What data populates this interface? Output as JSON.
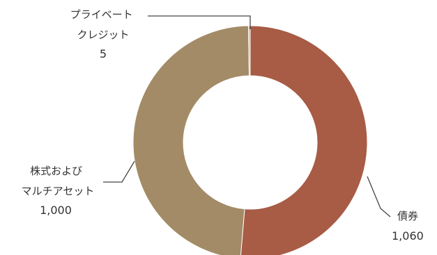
{
  "chart_data": {
    "type": "pie",
    "donut": true,
    "categories": [
      "債券",
      "株式および\nマルチアセット",
      "プライベート\nクレジット"
    ],
    "values": [
      1060,
      1000,
      5
    ],
    "value_labels": [
      "1,060",
      "1,000",
      "5"
    ],
    "colors": [
      "#a85b45",
      "#a38b67",
      "#d2b38c"
    ],
    "title": "",
    "legend": "none"
  }
}
